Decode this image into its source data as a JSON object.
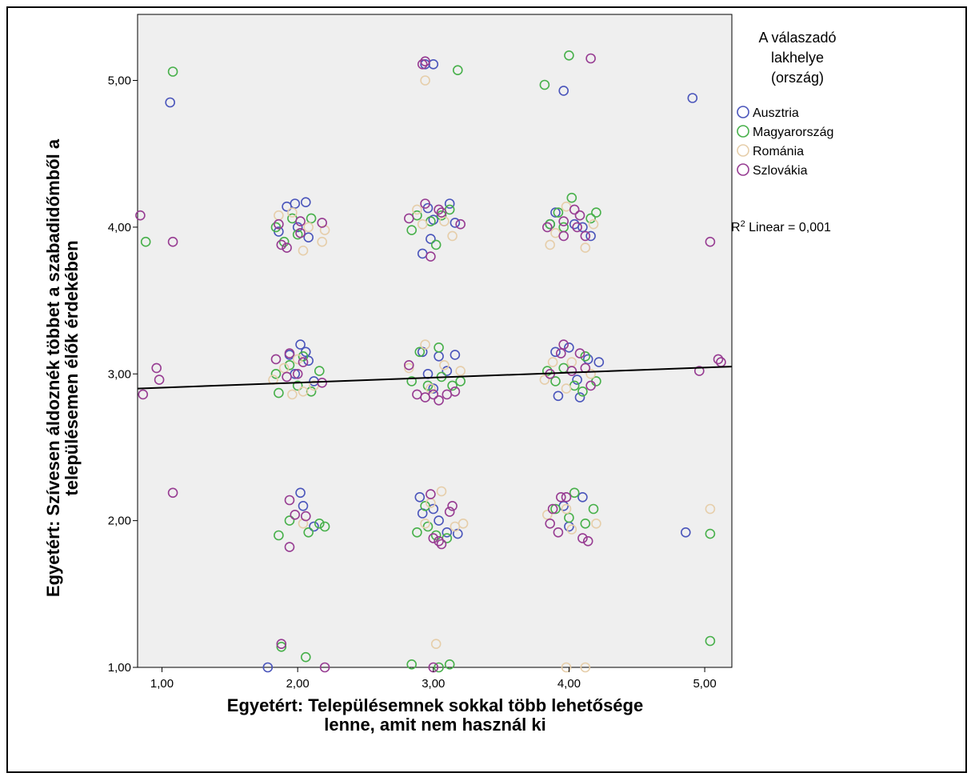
{
  "chart_data": {
    "type": "scatter",
    "xlabel_lines": [
      "Egyetért: Településemnek sokkal több lehetősége",
      "lenne, amit nem használ ki"
    ],
    "ylabel_lines": [
      "Egyetért: Szívesen áldoznék többet a szabadidőmből a",
      "településemen élők érdekében"
    ],
    "xlim": [
      0.82,
      5.2
    ],
    "ylim": [
      1.0,
      5.45
    ],
    "xticks": [
      1,
      2,
      3,
      4,
      5
    ],
    "yticks": [
      1,
      2,
      3,
      4,
      5
    ],
    "xtick_labels": [
      "1,00",
      "2,00",
      "3,00",
      "4,00",
      "5,00"
    ],
    "ytick_labels": [
      "1,00",
      "2,00",
      "3,00",
      "4,00",
      "5,00"
    ],
    "grid": false,
    "background_color": "#efefef",
    "legend": {
      "title_lines": [
        "A válaszadó",
        "lakhelye",
        "(ország)"
      ],
      "placement": "right",
      "fit_label_prefix": "R",
      "fit_label_sup": "2",
      "fit_label_rest": " Linear = 0,001"
    },
    "fit_line": {
      "x": [
        0.82,
        5.2
      ],
      "y": [
        2.9,
        3.05
      ],
      "color": "#000000"
    },
    "series": [
      {
        "name": "Ausztria",
        "color": "#4a55bb",
        "points": [
          [
            1.06,
            4.85
          ],
          [
            2.94,
            5.11
          ],
          [
            3.0,
            5.11
          ],
          [
            3.96,
            4.93
          ],
          [
            4.91,
            4.88
          ],
          [
            1.92,
            4.14
          ],
          [
            1.98,
            4.16
          ],
          [
            2.06,
            4.17
          ],
          [
            2.08,
            3.93
          ],
          [
            2.0,
            4.0
          ],
          [
            1.86,
            3.97
          ],
          [
            2.96,
            4.13
          ],
          [
            3.12,
            4.16
          ],
          [
            3.0,
            4.05
          ],
          [
            2.92,
            3.82
          ],
          [
            2.98,
            3.92
          ],
          [
            3.16,
            4.03
          ],
          [
            3.9,
            4.1
          ],
          [
            4.04,
            4.02
          ],
          [
            4.1,
            4.0
          ],
          [
            4.16,
            3.94
          ],
          [
            3.86,
            4.02
          ],
          [
            1.94,
            3.13
          ],
          [
            2.02,
            3.2
          ],
          [
            2.06,
            3.15
          ],
          [
            2.08,
            3.09
          ],
          [
            1.98,
            3.0
          ],
          [
            2.12,
            2.95
          ],
          [
            2.92,
            3.15
          ],
          [
            3.04,
            3.12
          ],
          [
            3.1,
            3.02
          ],
          [
            3.16,
            3.13
          ],
          [
            3.0,
            2.9
          ],
          [
            2.96,
            3.0
          ],
          [
            3.9,
            3.15
          ],
          [
            4.0,
            3.18
          ],
          [
            4.06,
            2.96
          ],
          [
            4.14,
            3.1
          ],
          [
            4.22,
            3.08
          ],
          [
            3.92,
            2.85
          ],
          [
            4.08,
            2.84
          ],
          [
            1.78,
            1.0
          ],
          [
            2.02,
            2.19
          ],
          [
            2.04,
            2.1
          ],
          [
            2.12,
            1.96
          ],
          [
            2.9,
            2.16
          ],
          [
            3.04,
            2.0
          ],
          [
            3.1,
            1.92
          ],
          [
            2.92,
            2.05
          ],
          [
            3.18,
            1.91
          ],
          [
            3.0,
            2.08
          ],
          [
            3.96,
            2.1
          ],
          [
            4.1,
            2.16
          ],
          [
            4.0,
            1.96
          ],
          [
            4.86,
            1.92
          ]
        ]
      },
      {
        "name": "Magyarország",
        "color": "#47b04a",
        "points": [
          [
            1.08,
            5.06
          ],
          [
            3.18,
            5.07
          ],
          [
            3.82,
            4.97
          ],
          [
            4.0,
            5.17
          ],
          [
            0.88,
            3.9
          ],
          [
            1.84,
            4.0
          ],
          [
            1.96,
            4.06
          ],
          [
            2.1,
            4.06
          ],
          [
            2.0,
            3.95
          ],
          [
            1.9,
            3.9
          ],
          [
            2.84,
            3.98
          ],
          [
            2.88,
            4.08
          ],
          [
            2.98,
            4.04
          ],
          [
            3.06,
            4.08
          ],
          [
            3.12,
            4.12
          ],
          [
            3.02,
            3.88
          ],
          [
            3.86,
            4.02
          ],
          [
            3.92,
            4.1
          ],
          [
            4.02,
            4.2
          ],
          [
            4.16,
            4.06
          ],
          [
            4.2,
            4.1
          ],
          [
            3.96,
            4.0
          ],
          [
            1.84,
            3.0
          ],
          [
            1.86,
            2.87
          ],
          [
            1.94,
            3.06
          ],
          [
            2.0,
            2.92
          ],
          [
            2.1,
            2.88
          ],
          [
            2.16,
            3.02
          ],
          [
            2.04,
            3.12
          ],
          [
            2.84,
            2.95
          ],
          [
            2.9,
            3.15
          ],
          [
            2.96,
            2.92
          ],
          [
            3.06,
            2.98
          ],
          [
            3.14,
            2.92
          ],
          [
            3.2,
            2.95
          ],
          [
            3.04,
            3.18
          ],
          [
            3.84,
            3.02
          ],
          [
            3.9,
            2.95
          ],
          [
            3.96,
            3.04
          ],
          [
            4.04,
            2.92
          ],
          [
            4.12,
            3.12
          ],
          [
            4.2,
            2.95
          ],
          [
            4.1,
            2.88
          ],
          [
            1.86,
            1.9
          ],
          [
            1.94,
            2.0
          ],
          [
            2.08,
            1.92
          ],
          [
            2.16,
            1.98
          ],
          [
            2.2,
            1.96
          ],
          [
            2.88,
            1.92
          ],
          [
            2.96,
            1.96
          ],
          [
            3.02,
            1.9
          ],
          [
            3.1,
            1.88
          ],
          [
            2.94,
            2.1
          ],
          [
            3.9,
            2.08
          ],
          [
            4.0,
            2.02
          ],
          [
            4.04,
            2.19
          ],
          [
            4.12,
            1.98
          ],
          [
            4.18,
            2.08
          ],
          [
            5.04,
            1.91
          ],
          [
            1.88,
            1.14
          ],
          [
            2.06,
            1.07
          ],
          [
            2.84,
            1.02
          ],
          [
            3.12,
            1.02
          ],
          [
            3.04,
            1.0
          ],
          [
            5.04,
            1.18
          ]
        ]
      },
      {
        "name": "Románia",
        "color": "#e6ceaa",
        "points": [
          [
            2.94,
            5.0
          ],
          [
            1.96,
            4.1
          ],
          [
            2.04,
            3.84
          ],
          [
            2.08,
            4.0
          ],
          [
            2.18,
            3.9
          ],
          [
            2.2,
            3.98
          ],
          [
            1.86,
            4.08
          ],
          [
            2.92,
            4.02
          ],
          [
            3.08,
            4.04
          ],
          [
            3.14,
            3.94
          ],
          [
            2.88,
            4.12
          ],
          [
            3.86,
            3.88
          ],
          [
            3.9,
            3.96
          ],
          [
            4.12,
            3.86
          ],
          [
            4.18,
            4.02
          ],
          [
            3.98,
            4.14
          ],
          [
            1.82,
            2.96
          ],
          [
            1.9,
            3.04
          ],
          [
            2.04,
            2.88
          ],
          [
            2.12,
            2.92
          ],
          [
            2.0,
            3.1
          ],
          [
            1.96,
            2.86
          ],
          [
            2.82,
            3.04
          ],
          [
            2.98,
            2.9
          ],
          [
            3.08,
            3.06
          ],
          [
            3.2,
            3.02
          ],
          [
            2.94,
            3.2
          ],
          [
            3.82,
            2.96
          ],
          [
            3.88,
            3.08
          ],
          [
            4.02,
            3.08
          ],
          [
            4.16,
            3.0
          ],
          [
            3.98,
            2.9
          ],
          [
            2.04,
            1.98
          ],
          [
            2.98,
            2.12
          ],
          [
            3.06,
            2.2
          ],
          [
            3.16,
            1.96
          ],
          [
            3.22,
            1.98
          ],
          [
            2.94,
            1.98
          ],
          [
            3.84,
            2.04
          ],
          [
            3.98,
            2.08
          ],
          [
            4.2,
            1.98
          ],
          [
            4.02,
            1.94
          ],
          [
            5.04,
            2.08
          ],
          [
            3.02,
            1.16
          ],
          [
            3.98,
            1.0
          ],
          [
            4.12,
            1.0
          ]
        ]
      },
      {
        "name": "Szlovákia",
        "color": "#973c92",
        "points": [
          [
            2.92,
            5.11
          ],
          [
            2.94,
            5.13
          ],
          [
            4.16,
            5.15
          ],
          [
            0.84,
            4.08
          ],
          [
            1.08,
            3.9
          ],
          [
            5.04,
            3.9
          ],
          [
            1.86,
            4.02
          ],
          [
            1.88,
            3.88
          ],
          [
            1.92,
            3.86
          ],
          [
            2.02,
            4.04
          ],
          [
            2.18,
            4.03
          ],
          [
            2.02,
            3.96
          ],
          [
            2.82,
            4.06
          ],
          [
            2.94,
            4.16
          ],
          [
            3.04,
            4.12
          ],
          [
            3.2,
            4.02
          ],
          [
            2.98,
            3.8
          ],
          [
            3.06,
            4.1
          ],
          [
            3.84,
            4.0
          ],
          [
            3.96,
            4.04
          ],
          [
            4.04,
            4.12
          ],
          [
            4.08,
            4.08
          ],
          [
            4.12,
            3.94
          ],
          [
            3.96,
            3.94
          ],
          [
            4.06,
            4.0
          ],
          [
            0.96,
            3.04
          ],
          [
            0.98,
            2.96
          ],
          [
            0.86,
            2.86
          ],
          [
            5.1,
            3.1
          ],
          [
            5.12,
            3.08
          ],
          [
            4.96,
            3.02
          ],
          [
            1.84,
            3.1
          ],
          [
            1.92,
            2.98
          ],
          [
            1.94,
            3.14
          ],
          [
            2.0,
            3.0
          ],
          [
            2.18,
            2.94
          ],
          [
            2.04,
            3.08
          ],
          [
            2.82,
            3.06
          ],
          [
            2.88,
            2.86
          ],
          [
            2.94,
            2.84
          ],
          [
            3.0,
            2.86
          ],
          [
            3.04,
            2.82
          ],
          [
            3.1,
            2.86
          ],
          [
            3.16,
            2.88
          ],
          [
            3.86,
            3.0
          ],
          [
            3.94,
            3.14
          ],
          [
            4.02,
            3.02
          ],
          [
            4.08,
            3.14
          ],
          [
            4.12,
            3.04
          ],
          [
            4.16,
            2.92
          ],
          [
            3.96,
            3.2
          ],
          [
            1.08,
            2.19
          ],
          [
            1.94,
            2.14
          ],
          [
            1.98,
            2.04
          ],
          [
            1.94,
            1.82
          ],
          [
            2.06,
            2.03
          ],
          [
            2.98,
            2.18
          ],
          [
            3.0,
            1.88
          ],
          [
            3.06,
            1.84
          ],
          [
            3.12,
            2.06
          ],
          [
            3.14,
            2.1
          ],
          [
            3.04,
            1.86
          ],
          [
            3.86,
            1.98
          ],
          [
            3.88,
            2.08
          ],
          [
            3.94,
            2.16
          ],
          [
            4.1,
            1.88
          ],
          [
            4.14,
            1.86
          ],
          [
            3.92,
            1.92
          ],
          [
            3.98,
            2.16
          ],
          [
            1.88,
            1.16
          ],
          [
            2.2,
            1.0
          ],
          [
            3.0,
            1.0
          ]
        ]
      }
    ]
  }
}
